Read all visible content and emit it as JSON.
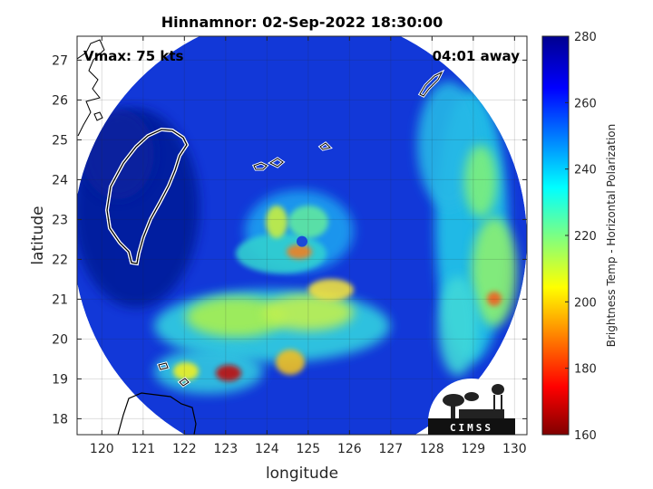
{
  "chart_data": {
    "type": "heatmap",
    "title": "Hinnamnor: 02-Sep-2022 18:30:00",
    "xlabel": "longitude",
    "ylabel": "latitude",
    "xlim": [
      119.4,
      130.3
    ],
    "ylim": [
      17.6,
      27.6
    ],
    "x_ticks": [
      "120",
      "121",
      "122",
      "123",
      "124",
      "125",
      "126",
      "127",
      "128",
      "129",
      "130"
    ],
    "y_ticks": [
      "18",
      "19",
      "20",
      "21",
      "22",
      "23",
      "24",
      "25",
      "26",
      "27"
    ],
    "grid": true,
    "annotations": {
      "vmax": "Vmax: 75 kts",
      "time_away": "04:01 away"
    },
    "colorbar": {
      "label": "Brightness Temp - Horizontal Polarization",
      "min": 160,
      "max": 280,
      "ticks": [
        "280",
        "260",
        "240",
        "220",
        "200",
        "180",
        "160"
      ],
      "colormap": "jet"
    },
    "swath": {
      "center_lon": 124.8,
      "center_lat": 22.5,
      "radius_deg": 5.5
    },
    "storm": {
      "eye_lon": 124.85,
      "eye_lat": 22.45
    },
    "logo_text": "CIMSS"
  },
  "colors": {
    "background_in_swath": "#0a28c8",
    "coastline": "#000000"
  }
}
